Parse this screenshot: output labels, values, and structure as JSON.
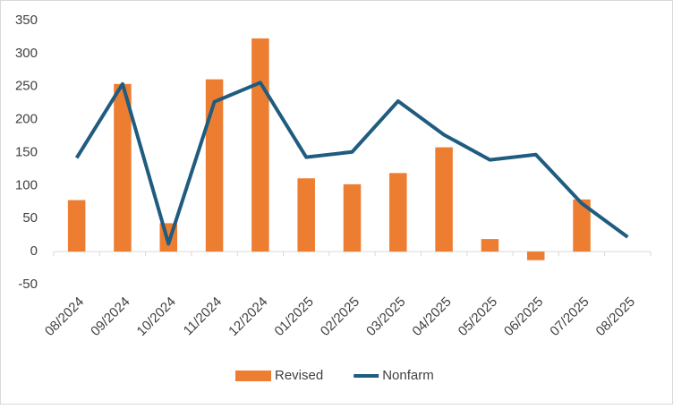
{
  "chart_data": {
    "type": "bar",
    "categories": [
      "08/2024",
      "09/2024",
      "10/2024",
      "11/2024",
      "12/2024",
      "01/2025",
      "02/2025",
      "03/2025",
      "04/2025",
      "05/2025",
      "06/2025",
      "07/2025",
      "08/2025"
    ],
    "series": [
      {
        "name": "Revised",
        "type": "bar",
        "color": "#ed7d31",
        "values": [
          78,
          254,
          43,
          261,
          323,
          111,
          102,
          119,
          158,
          19,
          -13,
          79,
          null
        ]
      },
      {
        "name": "Nonfarm",
        "type": "line",
        "color": "#1f5c7f",
        "values": [
          142,
          254,
          12,
          227,
          256,
          143,
          151,
          228,
          177,
          139,
          147,
          73,
          22
        ]
      }
    ],
    "ylim": [
      -50,
      350
    ],
    "yticks": [
      -50,
      0,
      50,
      100,
      150,
      200,
      250,
      300,
      350
    ],
    "grid": false,
    "legend": "bottom"
  }
}
